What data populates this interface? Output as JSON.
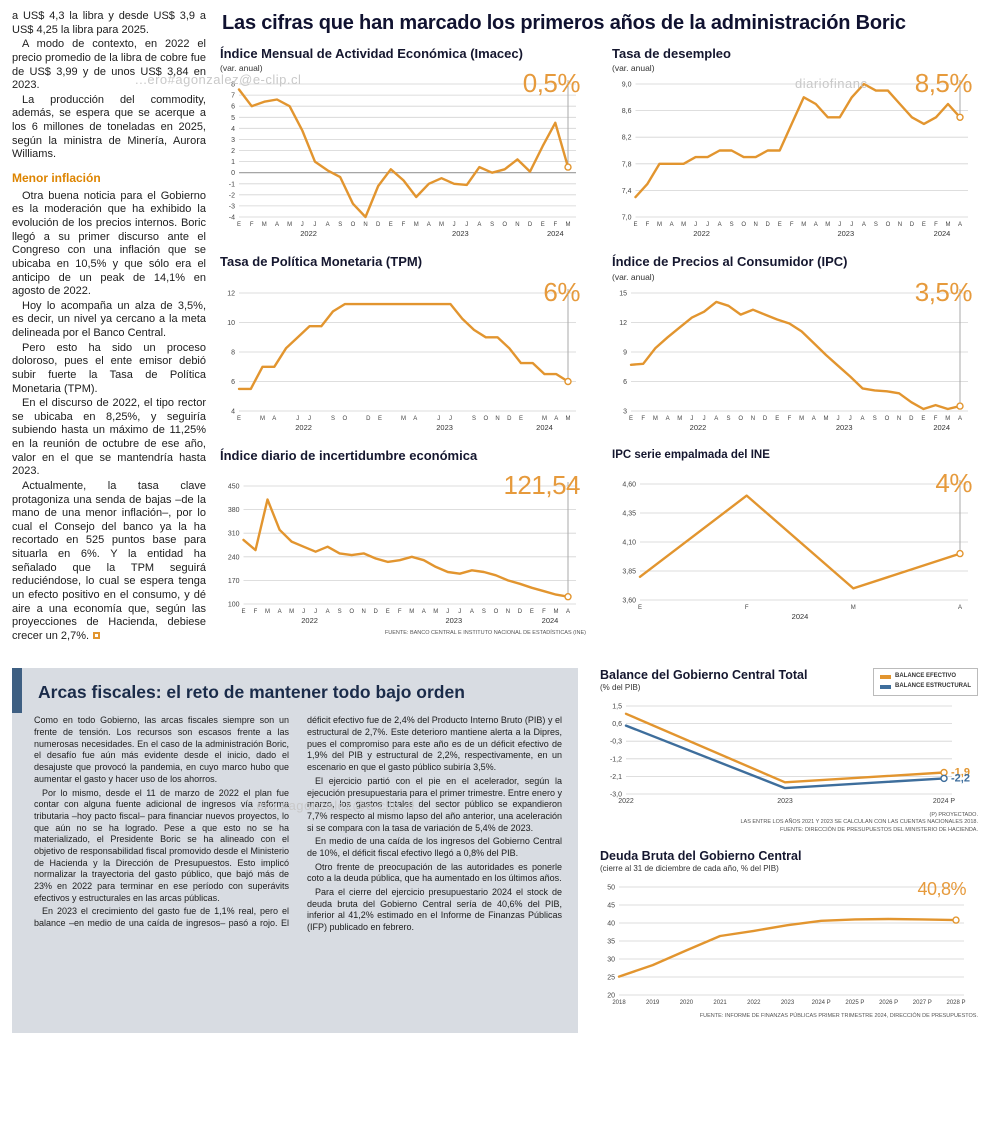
{
  "colors": {
    "accent_orange": "#E2952F",
    "highlight_orange": "#E69A3C",
    "accent_blue": "#3E6E9C",
    "box_gray": "#D8DCE2",
    "bar_blue": "#3E5F82",
    "headline": "#101230",
    "subhead_orange": "#DD8400"
  },
  "watermarks": [
    "...ero#agonzalez@e-clip.cl",
    "diariofinanc",
    "....ero.#agonzalez@e-clip.cl"
  ],
  "main_title": "Las cifras que han marcado los primeros años de la administración Boric",
  "left_article": {
    "paragraphs_before": [
      "a US$ 4,3 la libra y desde US$ 3,9 a US$ 4,25 la libra para 2025.",
      "A modo de contexto, en 2022 el precio promedio de la libra de cobre fue de US$ 3,99 y de unos US$ 3,84 en 2023.",
      "La producción del commodity, además, se espera que se acerque a los 6 millones de toneladas en 2025, según la ministra de Minería, Aurora Williams."
    ],
    "subhead": "Menor inflación",
    "paragraphs_after": [
      "Otra buena noticia para el Gobierno es la moderación que ha exhibido la evolución de los precios internos. Boric llegó a su primer discurso ante el Congreso con una inflación que se ubicaba en 10,5% y que sólo era el anticipo de un peak de 14,1% en agosto de 2022.",
      "Hoy lo acompaña un alza de 3,5%, es decir, un nivel ya cercano a la meta delineada por el Banco Central.",
      "Pero esto ha sido un proceso doloroso, pues el ente emisor debió subir fuerte la Tasa de Política Monetaria (TPM).",
      "En el discurso de 2022, el tipo rector se ubicaba en 8,25%, y seguiría subiendo hasta un máximo de 11,25% en la reunión de octubre de ese año, valor en el que se mantendría hasta 2023.",
      "Actualmente, la tasa clave protagoniza una senda de bajas –de la mano de una menor inflación–, por lo cual el Consejo del banco ya la ha recortado en 525 puntos base para situarla en 6%. Y la entidad ha señalado que la TPM seguirá reduciéndose, lo cual se espera tenga un efecto positivo en el consumo, y dé aire a una economía que, según las proyecciones de Hacienda, debiese crecer un 2,7%."
    ]
  },
  "fiscal_box": {
    "title": "Arcas fiscales: el reto de mantener todo bajo orden",
    "paragraphs": [
      "Como en todo Gobierno, las arcas fiscales siempre son un frente de tensión. Los recursos son escasos frente a las numerosas necesidades. En el caso de la administración Boric, el desafío fue aún más evidente desde el inicio, dado el desajuste que provocó la pandemia, en cuyo marco hubo que aumentar el gasto y hacer uso de los ahorros.",
      "Por lo mismo, desde el 11 de marzo de 2022 el plan fue contar con alguna fuente adicional de ingresos vía reforma tributaria –hoy pacto fiscal– para financiar nuevos proyectos, lo que aún no se ha logrado. Pese a que esto no se ha materializado, el Presidente Boric se ha alineado con el objetivo de responsabilidad fiscal promovido desde el Ministerio de Hacienda y la Dirección de Presupuestos. Esto implicó normalizar la trayectoria del gasto público, que bajó más de 23% en 2022 para terminar en ese período con superávits efectivos y estructurales en las arcas públicas.",
      "En 2023 el crecimiento del gasto fue de 1,1% real, pero el balance –en medio de una caída de ingresos– pasó a rojo. El déficit efectivo fue de 2,4% del Producto Interno Bruto (PIB) y el estructural de 2,7%. Este deterioro mantiene alerta a la Dipres, pues el compromiso para este año es de un déficit efectivo de 1,9% del PIB y estructural de 2,2%, respectivamente, en un escenario en que el gasto público subiría 3,5%.",
      "El ejercicio partió con el pie en el acelerador, según la ejecución presupuestaria para el primer trimestre. Entre enero y marzo, los gastos totales del sector público se expandieron 7,7% respecto al mismo lapso del año anterior, una aceleración si se compara con la tasa de variación de 5,4% de 2023.",
      "En medio de una caída de los ingresos del Gobierno Central de 10%, el déficit fiscal efectivo llegó a 0,8% del PIB.",
      "Otro frente de preocupación de las autoridades es ponerle coto a la deuda pública, que ha aumentado en los últimos años.",
      "Para el cierre del ejercicio presupuestario 2024 el stock de deuda bruta del Gobierno Central sería de 40,6% del PIB, inferior al 41,2% estimado en el Informe de Finanzas Públicas (IFP) publicado en febrero."
    ]
  },
  "chart_data": [
    {
      "id": "imacec",
      "type": "line",
      "title": "Índice Mensual de Actividad Económica (Imacec)",
      "subtitle": "(var. anual)",
      "highlight": "0,5%",
      "color": "#E2952F",
      "ylim": [
        -4,
        8
      ],
      "ytick_values": [
        8,
        7,
        6,
        5,
        4,
        3,
        2,
        1,
        0,
        -1,
        -2,
        -3,
        -4
      ],
      "ytick_labels": [
        "8",
        "7",
        "6",
        "5",
        "4",
        "3",
        "2",
        "1",
        "0",
        "-1",
        "-2",
        "-3",
        "-4"
      ],
      "x_labels": [
        "E",
        "F",
        "M",
        "A",
        "M",
        "J",
        "J",
        "A",
        "S",
        "O",
        "N",
        "D",
        "E",
        "F",
        "M",
        "A",
        "M",
        "J",
        "J",
        "A",
        "S",
        "O",
        "N",
        "D",
        "E",
        "F",
        "M"
      ],
      "years": [
        {
          "label": "2022",
          "i": 5.5
        },
        {
          "label": "2023",
          "i": 17.5
        },
        {
          "label": "2024",
          "i": 25
        }
      ],
      "values": [
        7.5,
        6,
        6.4,
        6.6,
        6,
        3.8,
        1,
        0.2,
        -0.4,
        -2.8,
        -4,
        -1.2,
        0.3,
        -0.7,
        -2.2,
        -1,
        -0.5,
        -1,
        -1.1,
        0.5,
        0,
        0.3,
        1.2,
        0.1,
        2.4,
        4.5,
        0.5
      ],
      "drop_line": true,
      "zero_dark": true
    },
    {
      "id": "desempleo",
      "type": "line",
      "title": "Tasa de desempleo",
      "subtitle": "(var. anual)",
      "highlight": "8,5%",
      "color": "#E2952F",
      "ylim": [
        7.0,
        9.0
      ],
      "ytick_values": [
        9.0,
        8.6,
        8.2,
        7.8,
        7.4,
        7.0
      ],
      "ytick_labels": [
        "9,0",
        "8,6",
        "8,2",
        "7,8",
        "7,4",
        "7,0"
      ],
      "x_labels": [
        "E",
        "F",
        "M",
        "A",
        "M",
        "J",
        "J",
        "A",
        "S",
        "O",
        "N",
        "D",
        "E",
        "F",
        "M",
        "A",
        "M",
        "J",
        "J",
        "A",
        "S",
        "O",
        "N",
        "D",
        "E",
        "F",
        "M",
        "A"
      ],
      "years": [
        {
          "label": "2022",
          "i": 5.5
        },
        {
          "label": "2023",
          "i": 17.5
        },
        {
          "label": "2024",
          "i": 25.5
        }
      ],
      "values": [
        7.3,
        7.5,
        7.8,
        7.8,
        7.8,
        7.9,
        7.9,
        8.0,
        8.0,
        7.9,
        7.9,
        8.0,
        8.0,
        8.4,
        8.8,
        8.7,
        8.5,
        8.5,
        8.8,
        9.0,
        8.9,
        8.9,
        8.7,
        8.5,
        8.4,
        8.5,
        8.7,
        8.5
      ],
      "drop_line": true
    },
    {
      "id": "tpm",
      "type": "line",
      "title": "Tasa de Política Monetaria (TPM)",
      "subtitle": "",
      "highlight": "6%",
      "color": "#E2952F",
      "ylim": [
        4,
        12
      ],
      "ytick_values": [
        12,
        10,
        8,
        6,
        4
      ],
      "ytick_labels": [
        "12",
        "10",
        "8",
        "6",
        "4"
      ],
      "x_labels": [
        "E",
        "",
        "M",
        "A",
        "",
        "J",
        "J",
        "",
        "S",
        "O",
        "",
        "D",
        "E",
        "",
        "M",
        "A",
        "",
        "J",
        "J",
        "",
        "S",
        "O",
        "N",
        "D",
        "E",
        "",
        "M",
        "A",
        "M"
      ],
      "years": [
        {
          "label": "2022",
          "i": 5.5
        },
        {
          "label": "2023",
          "i": 17.5
        },
        {
          "label": "2024",
          "i": 26
        }
      ],
      "values": [
        5.5,
        5.5,
        7.0,
        7.0,
        8.25,
        9.0,
        9.75,
        9.75,
        10.75,
        11.25,
        11.25,
        11.25,
        11.25,
        11.25,
        11.25,
        11.25,
        11.25,
        11.25,
        11.25,
        10.25,
        9.5,
        9.0,
        9.0,
        8.25,
        7.25,
        7.25,
        6.5,
        6.5,
        6.0
      ],
      "drop_line": true
    },
    {
      "id": "ipc",
      "type": "line",
      "title": "Índice de Precios al Consumidor (IPC)",
      "subtitle": "(var. anual)",
      "highlight": "3,5%",
      "color": "#E2952F",
      "ylim": [
        3,
        15
      ],
      "ytick_values": [
        15,
        12,
        9,
        6,
        3
      ],
      "ytick_labels": [
        "15",
        "12",
        "9",
        "6",
        "3"
      ],
      "x_labels": [
        "E",
        "F",
        "M",
        "A",
        "M",
        "J",
        "J",
        "A",
        "S",
        "O",
        "N",
        "D",
        "E",
        "F",
        "M",
        "A",
        "M",
        "J",
        "J",
        "A",
        "S",
        "O",
        "N",
        "D",
        "E",
        "F",
        "M",
        "A"
      ],
      "years": [
        {
          "label": "2022",
          "i": 5.5
        },
        {
          "label": "2023",
          "i": 17.5
        },
        {
          "label": "2024",
          "i": 25.5
        }
      ],
      "values": [
        7.7,
        7.8,
        9.4,
        10.5,
        11.5,
        12.5,
        13.1,
        14.1,
        13.7,
        12.8,
        13.3,
        12.8,
        12.3,
        11.9,
        11.1,
        9.9,
        8.7,
        7.6,
        6.5,
        5.3,
        5.1,
        5.0,
        4.8,
        3.9,
        3.2,
        3.6,
        3.2,
        3.5
      ],
      "drop_line": true
    },
    {
      "id": "incertidumbre",
      "type": "line",
      "title": "Índice diario de incertidumbre económica",
      "subtitle": "",
      "highlight": "121,54",
      "color": "#E2952F",
      "ylim": [
        100,
        450
      ],
      "ytick_values": [
        450,
        380,
        310,
        240,
        170,
        100
      ],
      "ytick_labels": [
        "450",
        "380",
        "310",
        "240",
        "170",
        "100"
      ],
      "x_labels": [
        "E",
        "F",
        "M",
        "A",
        "M",
        "J",
        "J",
        "A",
        "S",
        "O",
        "N",
        "D",
        "E",
        "F",
        "M",
        "A",
        "M",
        "J",
        "J",
        "A",
        "S",
        "O",
        "N",
        "D",
        "E",
        "F",
        "M",
        "A"
      ],
      "years": [
        {
          "label": "2022",
          "i": 5.5
        },
        {
          "label": "2023",
          "i": 17.5
        },
        {
          "label": "2024",
          "i": 25.5
        }
      ],
      "values": [
        290,
        260,
        410,
        320,
        285,
        270,
        255,
        270,
        250,
        245,
        250,
        235,
        225,
        230,
        240,
        230,
        210,
        195,
        190,
        200,
        195,
        185,
        170,
        160,
        148,
        138,
        128,
        121.54
      ],
      "drop_line": true,
      "source": "FUENTE: BANCO CENTRAL E INSTITUTO NACIONAL DE ESTADÍSTICAS (INE)"
    },
    {
      "id": "ipc-empalmada",
      "type": "line",
      "title": "IPC serie empalmada del INE",
      "subtitle": "",
      "highlight": "4%",
      "color": "#E2952F",
      "ylim": [
        3.6,
        4.6
      ],
      "ytick_values": [
        4.6,
        4.35,
        4.1,
        3.85,
        3.6
      ],
      "ytick_labels": [
        "4,60",
        "4,35",
        "4,10",
        "3,85",
        "3,60"
      ],
      "x_labels": [
        "E",
        "F",
        "M",
        "A"
      ],
      "years": [
        {
          "label": "2024",
          "i": 1.5
        }
      ],
      "values": [
        3.8,
        4.5,
        3.7,
        4.0
      ],
      "drop_line": true
    },
    {
      "id": "balance-gobierno",
      "type": "line",
      "title": "Balance del Gobierno Central Total",
      "subtitle": "(% del PIB)",
      "ylim": [
        -3.0,
        1.5
      ],
      "ml": 26,
      "mr": 34,
      "mb": 16,
      "ytick_values": [
        1.5,
        0.6,
        -0.3,
        -1.2,
        -2.1,
        -3.0
      ],
      "ytick_labels": [
        "1,5",
        "0,6",
        "-0,3",
        "-1,2",
        "-2,1",
        "-3,0"
      ],
      "x_labels": [
        "2022",
        "2023",
        "2024 P"
      ],
      "xtick_fs": 7,
      "series": [
        {
          "name": "BALANCE EFECTIVO",
          "color": "#E2952F",
          "values": [
            1.1,
            -2.4,
            -1.9
          ],
          "end_label": "-1,9"
        },
        {
          "name": "BALANCE ESTRUCTURAL",
          "color": "#3E6E9C",
          "values": [
            0.5,
            -2.7,
            -2.2
          ],
          "end_label": "-2,2"
        }
      ],
      "legend_position": "top-right",
      "footnotes": [
        "(P) PROYECTADO.",
        "LAS ENTRE LOS AÑOS 2021 Y 2023 SE CALCULAN  CON LAS CUENTAS NACIONALES 2018.",
        "FUENTE: DIRECCIÓN DE PRESUPUESTOS DEL MINISTERIO DE HACIENDA."
      ]
    },
    {
      "id": "deuda-bruta",
      "type": "line",
      "title": "Deuda Bruta del Gobierno Central",
      "subtitle": "(cierre al 31 de diciembre de cada año, % del PIB)",
      "highlight": "40,8%",
      "color": "#E2952F",
      "ylim": [
        20,
        50
      ],
      "mb": 16,
      "mr": 22,
      "ytick_values": [
        50,
        45,
        40,
        35,
        30,
        25,
        20
      ],
      "ytick_labels": [
        "50",
        "45",
        "40",
        "35",
        "30",
        "25",
        "20"
      ],
      "x_labels": [
        "2018",
        "2019",
        "2020",
        "2021",
        "2022",
        "2023",
        "2024 P",
        "2025 P",
        "2026 P",
        "2027 P",
        "2028 P"
      ],
      "values": [
        25.1,
        28.3,
        32.4,
        36.4,
        37.8,
        39.4,
        40.6,
        41.0,
        41.1,
        41.0,
        40.8
      ],
      "source": "FUENTE: INFORME DE FINANZAS PÚBLICAS PRIMER TRIMESTRE 2024, DIRECCIÓN DE PRESUPUESTOS."
    }
  ]
}
